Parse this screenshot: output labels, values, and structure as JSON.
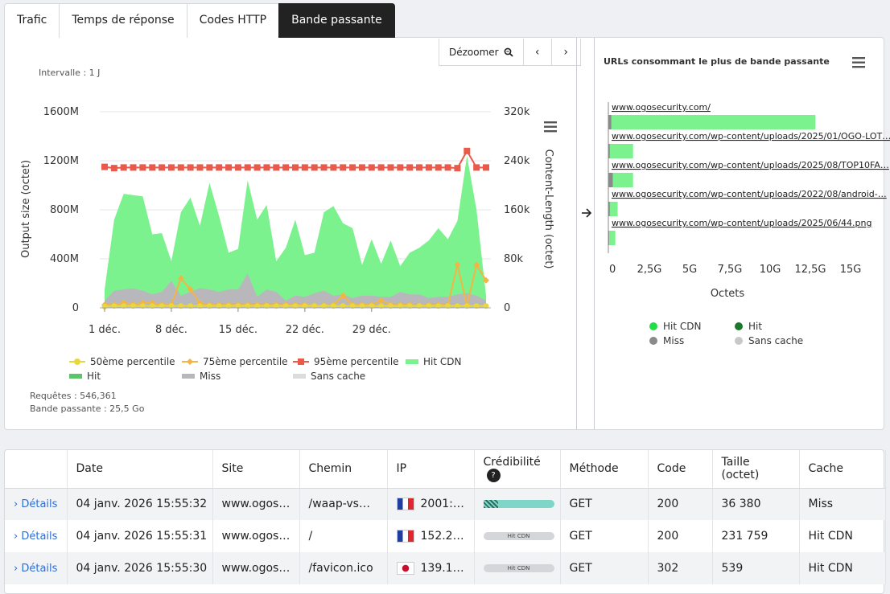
{
  "tabs": [
    "Trafic",
    "Temps de réponse",
    "Codes HTTP",
    "Bande passante"
  ],
  "toolbar": {
    "dezoom": "Dézoomer",
    "prev": "‹",
    "next": "›"
  },
  "interval_label": "Intervalle : 1 J",
  "left_chart": {
    "ylabel_left": "Output size (octet)",
    "ylabel_right": "Content-Length (octet)",
    "ticks_left": [
      "1600M",
      "1200M",
      "800M",
      "400M",
      "0"
    ],
    "ticks_right": [
      "320k",
      "240k",
      "160k",
      "80k",
      "0"
    ],
    "ticks_x": [
      "1 déc.",
      "8 déc.",
      "15 déc.",
      "22 déc.",
      "29 déc."
    ]
  },
  "legend_left": [
    {
      "label": "50ème percentile",
      "color": "#e8d83a"
    },
    {
      "label": "75ème percentile",
      "color": "#f2b544"
    },
    {
      "label": "95ème percentile",
      "color": "#ea5a4a"
    },
    {
      "label": "Hit CDN",
      "color": "#7cf28e"
    },
    {
      "label": "Hit",
      "color": "#5ec46c"
    },
    {
      "label": "Miss",
      "color": "#b8b8bc"
    },
    {
      "label": "Sans cache",
      "color": "#dcdcde"
    }
  ],
  "stats": {
    "requests": "Requêtes : 546,361",
    "bandwidth": "Bande passante : 25,5 Go"
  },
  "right_chart": {
    "title": "URLs consommant le plus de bande passante",
    "xlabel": "Octets",
    "ticks_x": [
      "0",
      "2,5G",
      "5G",
      "7,5G",
      "10G",
      "12,5G",
      "15G"
    ]
  },
  "legend_right": [
    {
      "label": "Hit CDN",
      "color": "#22dd44"
    },
    {
      "label": "Hit",
      "color": "#1a7a2a"
    },
    {
      "label": "Miss",
      "color": "#8a8a8a"
    },
    {
      "label": "Sans cache",
      "color": "#c8c8c8"
    }
  ],
  "chart_data": [
    {
      "type": "area",
      "title": "",
      "xlabel": "",
      "ylabel": "Output size (octet)",
      "ylabel_right": "Content-Length (octet)",
      "ylim": [
        0,
        1600
      ],
      "ylim_right": [
        0,
        320
      ],
      "x_ticks": [
        "1 déc.",
        "8 déc.",
        "15 déc.",
        "22 déc.",
        "29 déc."
      ],
      "x": [
        0,
        1,
        2,
        3,
        4,
        5,
        6,
        7,
        8,
        9,
        10,
        11,
        12,
        13,
        14,
        15,
        16,
        17,
        18,
        19,
        20,
        21,
        22,
        23,
        24,
        25,
        26,
        27,
        28,
        29,
        30,
        31,
        32,
        33,
        34,
        35,
        36,
        37,
        38,
        39,
        40
      ],
      "series": [
        {
          "name": "Hit CDN",
          "axis": "left",
          "values": [
            150,
            720,
            930,
            920,
            910,
            600,
            610,
            380,
            780,
            900,
            670,
            1020,
            750,
            450,
            480,
            1040,
            720,
            840,
            380,
            490,
            720,
            430,
            450,
            780,
            830,
            690,
            650,
            350,
            560,
            360,
            550,
            340,
            450,
            490,
            550,
            650,
            560,
            710,
            1240,
            800,
            100
          ]
        },
        {
          "name": "Miss",
          "axis": "left",
          "values": [
            60,
            140,
            150,
            160,
            140,
            110,
            130,
            220,
            100,
            130,
            160,
            150,
            130,
            150,
            150,
            280,
            90,
            150,
            130,
            60,
            100,
            90,
            120,
            140,
            100,
            110,
            80,
            100,
            100,
            90,
            90,
            130,
            110,
            110,
            80,
            90,
            90,
            110,
            120,
            100,
            60
          ]
        },
        {
          "name": "50ème percentile",
          "axis": "right",
          "values": [
            2,
            3,
            3,
            3,
            3,
            3,
            3,
            3,
            3,
            3,
            3,
            3,
            3,
            3,
            3,
            3,
            3,
            3,
            3,
            3,
            3,
            3,
            3,
            3,
            3,
            3,
            3,
            3,
            3,
            3,
            3,
            3,
            3,
            3,
            3,
            3,
            3,
            3,
            3,
            3,
            3
          ]
        },
        {
          "name": "75ème percentile",
          "axis": "right",
          "values": [
            5,
            5,
            8,
            6,
            8,
            8,
            5,
            5,
            48,
            30,
            8,
            5,
            5,
            5,
            5,
            5,
            5,
            5,
            5,
            5,
            5,
            5,
            4,
            4,
            5,
            20,
            5,
            5,
            5,
            12,
            5,
            5,
            5,
            4,
            5,
            5,
            5,
            70,
            4,
            70,
            45
          ]
        },
        {
          "name": "95ème percentile",
          "axis": "right",
          "values": [
            230,
            228,
            229,
            229,
            229,
            229,
            229,
            229,
            229,
            229,
            229,
            229,
            229,
            229,
            229,
            229,
            229,
            229,
            229,
            229,
            229,
            229,
            229,
            229,
            229,
            229,
            229,
            229,
            229,
            229,
            229,
            229,
            229,
            229,
            229,
            229,
            229,
            228,
            256,
            229,
            229
          ]
        }
      ]
    },
    {
      "type": "bar",
      "title": "URLs consommant le plus de bande passante",
      "xlabel": "Octets",
      "xlim": [
        0,
        15
      ],
      "categories": [
        "www.ogosecurity.com/",
        "www.ogosecurity.com/wp-content/uploads/2025/01/OGO-LOT…",
        "www.ogosecurity.com/wp-content/uploads/2025/08/TOP10FA…",
        "www.ogosecurity.com/wp-content/uploads/2022/08/android-…",
        "www.ogosecurity.com/wp-content/uploads/2025/06/44.png"
      ],
      "series": [
        {
          "name": "Hit CDN",
          "values": [
            13.2,
            1.5,
            1.3,
            0.5,
            0.4
          ]
        },
        {
          "name": "Miss",
          "values": [
            0.2,
            0.1,
            0.3,
            0.1,
            0.05
          ]
        }
      ]
    }
  ],
  "table": {
    "headers": [
      "",
      "Date",
      "Site",
      "Chemin",
      "IP",
      "Crédibilité",
      "Méthode",
      "Code",
      "Taille (octet)",
      "Cache"
    ],
    "rows": [
      {
        "details": "Détails",
        "date": "04 janv. 2026 15:55:32",
        "site": "www.ogos…",
        "path": "/waap-vs…",
        "flag": "fr",
        "ip": "2001:…",
        "cred": "",
        "method": "GET",
        "code": "200",
        "size": "36 380",
        "cache": "Miss"
      },
      {
        "details": "Détails",
        "date": "04 janv. 2026 15:55:31",
        "site": "www.ogos…",
        "path": "/",
        "flag": "fr",
        "ip": "152.2…",
        "cred": "Hit CDN",
        "method": "GET",
        "code": "200",
        "size": "231 759",
        "cache": "Hit CDN"
      },
      {
        "details": "Détails",
        "date": "04 janv. 2026 15:55:30",
        "site": "www.ogos…",
        "path": "/favicon.ico",
        "flag": "jp",
        "ip": "139.1…",
        "cred": "Hit CDN",
        "method": "GET",
        "code": "302",
        "size": "539",
        "cache": "Hit CDN"
      }
    ]
  }
}
